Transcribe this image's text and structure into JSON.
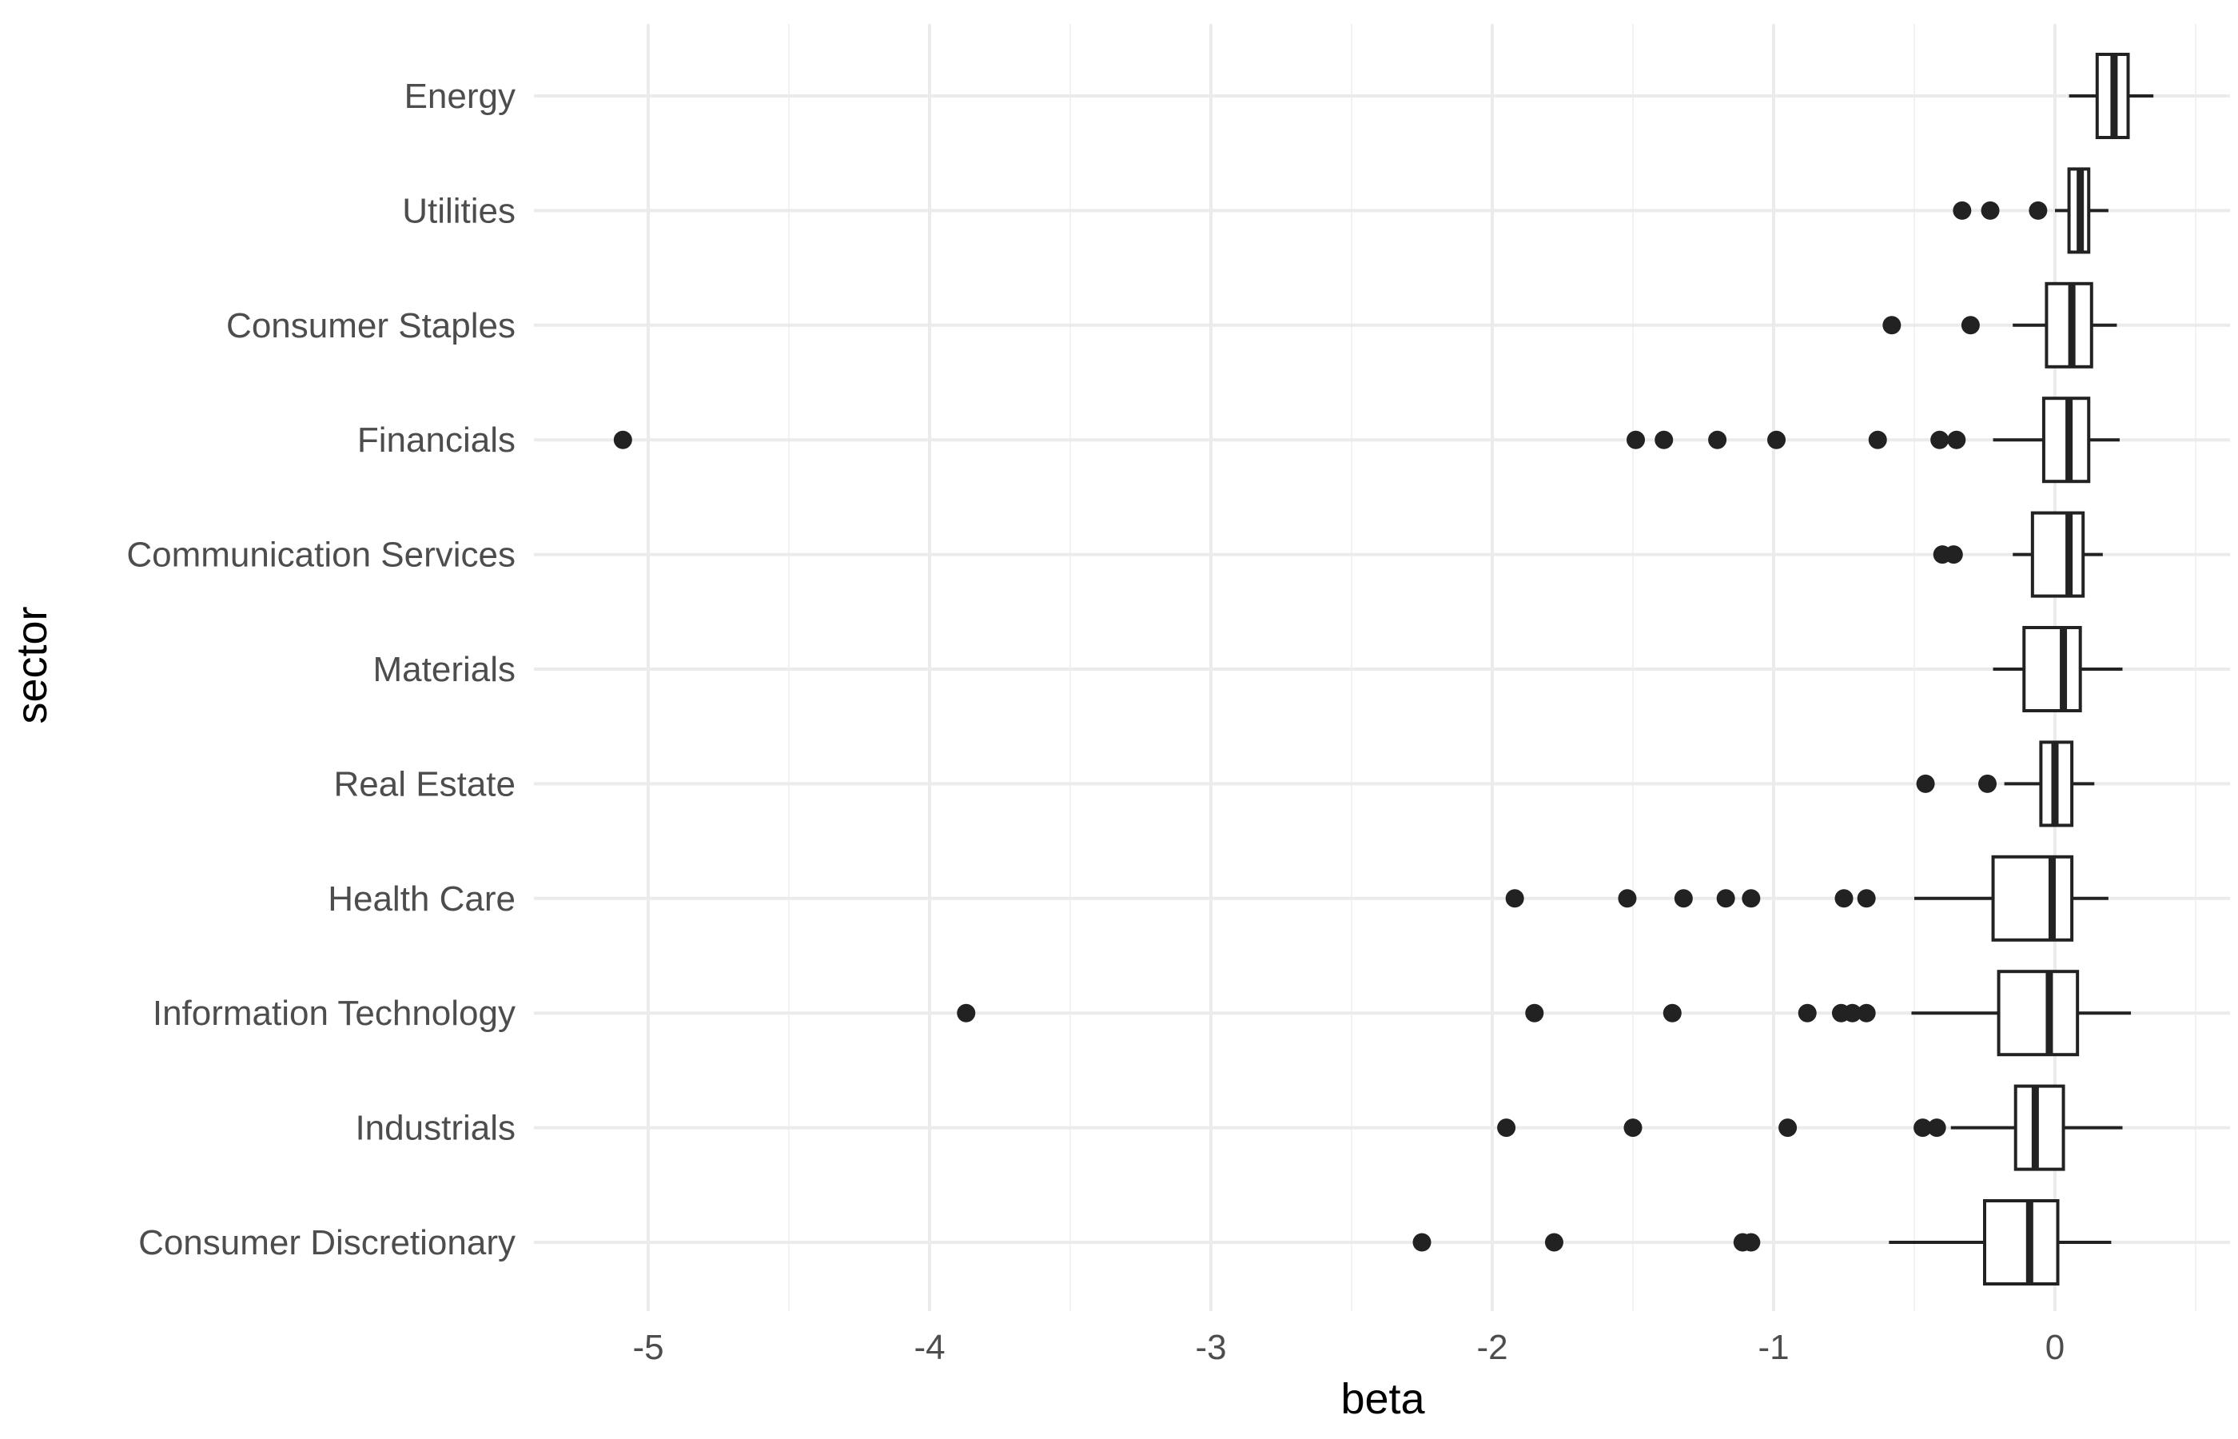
{
  "chart_data": {
    "type": "boxplot",
    "orientation": "horizontal",
    "xlabel": "beta",
    "ylabel": "sector",
    "xlim": [
      -5.4,
      0.6
    ],
    "x_ticks": [
      -5,
      -4,
      -3,
      -2,
      -1,
      0
    ],
    "x_tick_labels": [
      "-5",
      "-4",
      "-3",
      "-2",
      "-1",
      "0"
    ],
    "grid": true,
    "legend": "none",
    "categories": [
      "Energy",
      "Utilities",
      "Consumer Staples",
      "Financials",
      "Communication Services",
      "Materials",
      "Real Estate",
      "Health Care",
      "Information Technology",
      "Industrials",
      "Consumer Discretionary"
    ],
    "boxes": [
      {
        "sector": "Energy",
        "whisker_low": 0.05,
        "q1": 0.15,
        "median": 0.21,
        "q3": 0.26,
        "whisker_high": 0.35,
        "outliers": []
      },
      {
        "sector": "Utilities",
        "whisker_low": 0.0,
        "q1": 0.05,
        "median": 0.09,
        "q3": 0.12,
        "whisker_high": 0.19,
        "outliers": [
          -0.33,
          -0.23,
          -0.06
        ]
      },
      {
        "sector": "Consumer Staples",
        "whisker_low": -0.15,
        "q1": -0.03,
        "median": 0.06,
        "q3": 0.13,
        "whisker_high": 0.22,
        "outliers": [
          -0.58,
          -0.3
        ]
      },
      {
        "sector": "Financials",
        "whisker_low": -0.22,
        "q1": -0.04,
        "median": 0.05,
        "q3": 0.12,
        "whisker_high": 0.23,
        "outliers": [
          -5.09,
          -1.49,
          -1.39,
          -1.2,
          -0.99,
          -0.63,
          -0.41,
          -0.35
        ]
      },
      {
        "sector": "Communication Services",
        "whisker_low": -0.15,
        "q1": -0.08,
        "median": 0.05,
        "q3": 0.1,
        "whisker_high": 0.17,
        "outliers": [
          -0.4,
          -0.36
        ]
      },
      {
        "sector": "Materials",
        "whisker_low": -0.22,
        "q1": -0.11,
        "median": 0.03,
        "q3": 0.09,
        "whisker_high": 0.24,
        "outliers": []
      },
      {
        "sector": "Real Estate",
        "whisker_low": -0.18,
        "q1": -0.05,
        "median": 0.0,
        "q3": 0.06,
        "whisker_high": 0.14,
        "outliers": [
          -0.46,
          -0.24
        ]
      },
      {
        "sector": "Health Care",
        "whisker_low": -0.5,
        "q1": -0.22,
        "median": -0.01,
        "q3": 0.06,
        "whisker_high": 0.19,
        "outliers": [
          -1.92,
          -1.52,
          -1.32,
          -1.17,
          -1.08,
          -0.75,
          -0.67
        ]
      },
      {
        "sector": "Information Technology",
        "whisker_low": -0.51,
        "q1": -0.2,
        "median": -0.02,
        "q3": 0.08,
        "whisker_high": 0.27,
        "outliers": [
          -3.87,
          -1.85,
          -1.36,
          -0.88,
          -0.76,
          -0.72,
          -0.67
        ]
      },
      {
        "sector": "Industrials",
        "whisker_low": -0.37,
        "q1": -0.14,
        "median": -0.07,
        "q3": 0.03,
        "whisker_high": 0.24,
        "outliers": [
          -1.95,
          -1.5,
          -0.95,
          -0.47,
          -0.42
        ]
      },
      {
        "sector": "Consumer Discretionary",
        "whisker_low": -0.59,
        "q1": -0.25,
        "median": -0.09,
        "q3": 0.01,
        "whisker_high": 0.2,
        "outliers": [
          -2.25,
          -1.78,
          -1.11,
          -1.08
        ]
      }
    ],
    "colors": {
      "background": "#ffffff",
      "grid_major": "#ebebeb",
      "grid_minor": "#f2f2f2",
      "box_stroke": "#222222",
      "outlier": "#222222",
      "tick_text": "#4d4d4d",
      "axis_title": "#000000"
    }
  }
}
